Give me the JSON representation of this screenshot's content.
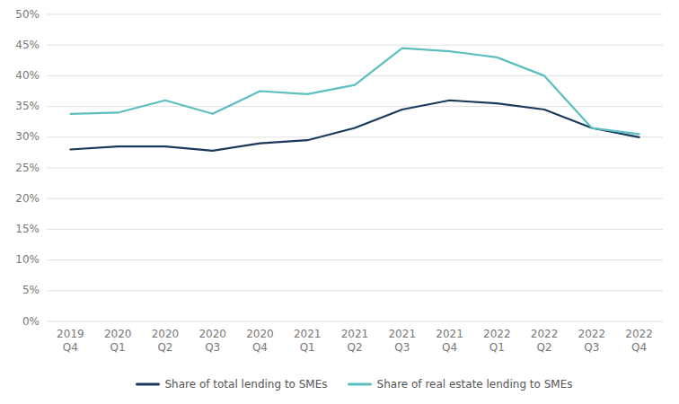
{
  "chart_data": {
    "type": "line",
    "categories": [
      "2019\nQ4",
      "2020\nQ1",
      "2020\nQ2",
      "2020\nQ3",
      "2020\nQ4",
      "2021\nQ1",
      "2021\nQ2",
      "2021\nQ3",
      "2021\nQ4",
      "2022\nQ1",
      "2022\nQ2",
      "2022\nQ3",
      "2022\nQ4"
    ],
    "series": [
      {
        "name": "Share of total lending to SMEs",
        "color": "#1a3a5c",
        "values": [
          28.0,
          28.5,
          28.5,
          27.8,
          29.0,
          29.5,
          31.5,
          34.5,
          36.0,
          35.5,
          34.5,
          31.5,
          30.0
        ]
      },
      {
        "name": "Share of real estate lending to SMEs",
        "color": "#5bbfbf",
        "values": [
          33.8,
          34.0,
          36.0,
          33.8,
          37.5,
          37.0,
          38.5,
          44.5,
          44.0,
          43.0,
          40.0,
          31.5,
          30.5
        ]
      }
    ],
    "ylim": [
      0,
      50
    ],
    "yticks": [
      {
        "value": 0,
        "label": "0%"
      },
      {
        "value": 5,
        "label": "5%"
      },
      {
        "value": 10,
        "label": "10%"
      },
      {
        "value": 15,
        "label": "15%"
      },
      {
        "value": 20,
        "label": "20%"
      },
      {
        "value": 25,
        "label": "25%"
      },
      {
        "value": 30,
        "label": "30%"
      },
      {
        "value": 35,
        "label": "35%"
      },
      {
        "value": 40,
        "label": "40%"
      },
      {
        "value": 45,
        "label": "45%"
      },
      {
        "value": 50,
        "label": "50%"
      }
    ],
    "grid": true,
    "legend": "bottom"
  }
}
